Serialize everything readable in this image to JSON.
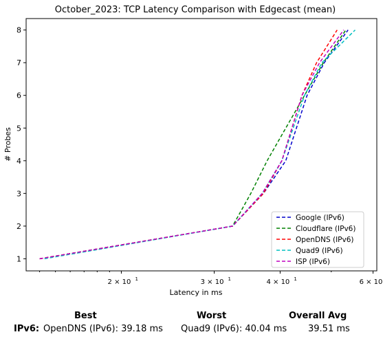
{
  "chart_data": {
    "type": "line",
    "title": "October_2023: TCP Latency Comparison with Edgecast (mean)",
    "xlabel": "Latency in ms",
    "ylabel": "# Probes",
    "x_scale": "log",
    "xlim": [
      13.2,
      61
    ],
    "ylim": [
      0.63,
      8.35
    ],
    "x_ticks": [
      {
        "value": 20,
        "label": "2 × 10",
        "exp": "1"
      },
      {
        "value": 30,
        "label": "3 × 10",
        "exp": "1"
      },
      {
        "value": 40,
        "label": "4 × 10",
        "exp": "1"
      },
      {
        "value": 60,
        "label": "6 × 10",
        "exp": "1"
      }
    ],
    "y_ticks": [
      1,
      2,
      3,
      4,
      5,
      6,
      7,
      8
    ],
    "grid": false,
    "legend_position": "lower-right",
    "series": [
      {
        "name": "Google (IPv6)",
        "color": "#0000cc",
        "x": [
          14.0,
          32.5,
          37.2,
          41.0,
          45.0,
          48.5,
          53.8
        ],
        "y": [
          1,
          2,
          3,
          4,
          6,
          7,
          8
        ]
      },
      {
        "name": "Cloudflare (IPv6)",
        "color": "#008000",
        "x": [
          14.0,
          32.5,
          35.2,
          37.8,
          41.0,
          44.5,
          48.3,
          53.3
        ],
        "y": [
          1,
          2,
          3,
          4,
          5,
          6,
          7,
          8
        ]
      },
      {
        "name": "OpenDNS (IPv6)",
        "color": "#ff0000",
        "x": [
          14.0,
          32.5,
          37.2,
          40.3,
          44.0,
          46.9,
          51.3
        ],
        "y": [
          1,
          2,
          3,
          4,
          6,
          7,
          8
        ]
      },
      {
        "name": "Quad9 (IPv6)",
        "color": "#00bfbf",
        "x": [
          14.3,
          32.5,
          37.0,
          40.3,
          44.5,
          48.0,
          55.5
        ],
        "y": [
          1,
          2,
          3,
          4,
          6,
          7,
          8
        ]
      },
      {
        "name": "ISP (IPv6)",
        "color": "#bf00bf",
        "x": [
          14.0,
          32.5,
          37.0,
          40.3,
          44.0,
          47.5,
          52.8
        ],
        "y": [
          1,
          2,
          3,
          4,
          6,
          7,
          8
        ]
      }
    ]
  },
  "summary": {
    "headers": {
      "best": "Best",
      "worst": "Worst",
      "overall": "Overall Avg"
    },
    "rows": [
      {
        "label": "IPv6:",
        "best": "OpenDNS (IPv6): 39.18 ms",
        "worst": "Quad9 (IPv6): 40.04 ms",
        "overall": "39.51 ms"
      }
    ]
  }
}
